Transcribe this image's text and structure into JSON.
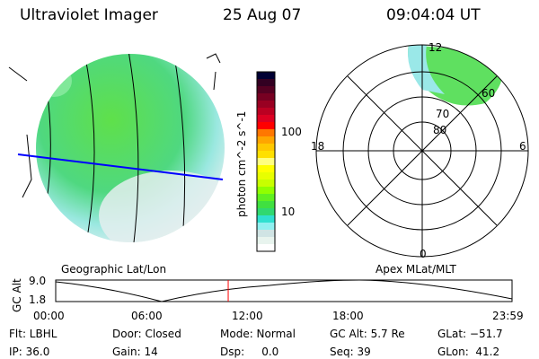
{
  "header": {
    "instrument": "Ultraviolet Imager",
    "date": "25 Aug 07",
    "time": "09:04:04 UT"
  },
  "colorbar": {
    "label": "photon cm^-2 s^-1",
    "ticks": [
      "100",
      "10"
    ],
    "colors": [
      "#000033",
      "#330022",
      "#550022",
      "#770022",
      "#990022",
      "#bb0022",
      "#dd0022",
      "#ff0000",
      "#ff7700",
      "#ffa500",
      "#ffc800",
      "#ffe000",
      "#ffff80",
      "#ffff00",
      "#e8ff00",
      "#c8ff00",
      "#90ff00",
      "#60f020",
      "#40e040",
      "#30d870",
      "#30e0d0",
      "#90f0f0",
      "#d0e4e4",
      "#e8f4ee",
      "#ffffff"
    ]
  },
  "polar": {
    "mlt_labels": [
      "12",
      "18",
      "6",
      "0"
    ],
    "mlat_labels": [
      "80",
      "70",
      "60"
    ]
  },
  "timeline": {
    "left_label": "Geographic Lat/Lon",
    "right_label": "Apex MLat/MLT",
    "yaxis_label": "GC Alt",
    "y_ticks": [
      "9.0",
      "1.8"
    ],
    "x_ticks": [
      "00:00",
      "06:00",
      "12:00",
      "18:00",
      "23:59"
    ],
    "current_time_fraction": 0.378
  },
  "status": {
    "flt": "Flt: LBHL",
    "ip": "IP: 36.0",
    "door": "Door: Closed",
    "gain": "Gain: 14",
    "mode": "Mode: Normal",
    "dsp": "Dsp:     0.0",
    "gcalt": "GC Alt: 5.7 Re",
    "seq": "Seq: 39",
    "glat": "GLat: −51.7",
    "glon": "GLon:  41.2"
  }
}
